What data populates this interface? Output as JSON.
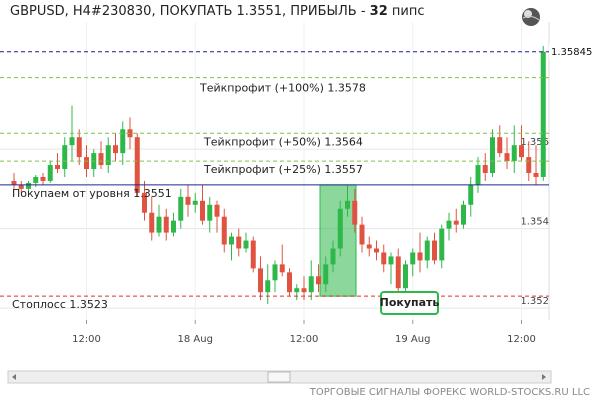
{
  "chart_data": {
    "type": "candlestick",
    "title": "GBPUSD, H4#230830, ПОКУПАТЬ 1.3551, ПРИБЫЛЬ -",
    "profit": 32,
    "profit_unit": "пипс",
    "footer": "ТОРГОВЫЕ СИГНАЛЫ ФОРЕКС WORLD-STOCKS.RU LLC",
    "button": "Покупать",
    "categories": [
      null,
      null,
      null,
      null,
      null,
      null,
      null,
      null,
      null,
      null,
      "12:00",
      null,
      null,
      null,
      null,
      null,
      null,
      null,
      null,
      null,
      null,
      null,
      null,
      null,
      null,
      "18 Aug",
      null,
      null,
      null,
      null,
      null,
      null,
      null,
      null,
      null,
      null,
      null,
      null,
      null,
      null,
      "12:00",
      null,
      null,
      null,
      null,
      null,
      null,
      null,
      null,
      null,
      null,
      null,
      null,
      null,
      null,
      "19 Aug",
      null,
      null,
      null,
      null,
      null,
      null,
      null,
      null,
      null,
      null,
      null,
      null,
      null,
      null,
      "12:00",
      null,
      null,
      null
    ],
    "open": [
      1.3552,
      1.3551,
      1.355,
      1.35515,
      1.3553,
      1.3552,
      1.3556,
      1.3555,
      1.3561,
      1.3563,
      1.3558,
      1.3555,
      1.3559,
      1.3556,
      1.3561,
      1.3559,
      1.3565,
      1.3563,
      1.3549,
      1.3544,
      1.3539,
      1.3543,
      1.3539,
      1.3542,
      1.3548,
      1.3546,
      1.3547,
      1.3542,
      1.3546,
      1.3543,
      1.3536,
      1.3538,
      1.3535,
      1.3537,
      1.353,
      1.3524,
      1.3527,
      1.3531,
      1.3529,
      1.3524,
      1.3525,
      1.3524,
      1.3528,
      1.3526,
      1.3531,
      1.3535,
      1.3545,
      1.3547,
      1.3541,
      1.3536,
      1.3535,
      1.3534,
      1.3531,
      1.3533,
      1.3525,
      1.3531,
      1.3534,
      1.3532,
      1.3537,
      1.3532,
      1.354,
      1.3542,
      1.3541,
      1.3546,
      1.3551,
      1.3556,
      1.3554,
      1.3563,
      1.3559,
      1.3557,
      1.3561,
      1.3558,
      1.3554,
      1.3553
    ],
    "high": [
      1.3554,
      1.3552,
      1.3552,
      1.35535,
      1.3554,
      1.3557,
      1.3559,
      1.3563,
      1.3571,
      1.3565,
      1.3561,
      1.356,
      1.3562,
      1.3563,
      1.3564,
      1.3567,
      1.3568,
      1.3564,
      1.3552,
      1.3548,
      1.3546,
      1.3545,
      1.3544,
      1.355,
      1.3551,
      1.3549,
      1.3551,
      1.3548,
      1.3547,
      1.3545,
      1.3539,
      1.354,
      1.3539,
      1.3538,
      1.3533,
      1.3531,
      1.3532,
      1.3536,
      1.353,
      1.3526,
      1.3528,
      1.3532,
      1.3531,
      1.3533,
      1.3537,
      1.3547,
      1.3551,
      1.355,
      1.3543,
      1.3538,
      1.3537,
      1.3536,
      1.3534,
      1.3535,
      1.3532,
      1.3535,
      1.3539,
      1.3538,
      1.3539,
      1.3541,
      1.3544,
      1.3545,
      1.3547,
      1.3553,
      1.3558,
      1.3559,
      1.3565,
      1.3566,
      1.3563,
      1.3566,
      1.3566,
      1.3562,
      1.3561,
      1.3586
    ],
    "low": [
      1.355,
      1.3549,
      1.3549,
      1.35505,
      1.3551,
      1.35515,
      1.3554,
      1.3553,
      1.3557,
      1.3556,
      1.3553,
      1.3553,
      1.3555,
      1.3554,
      1.3557,
      1.3556,
      1.356,
      1.3548,
      1.3542,
      1.3537,
      1.3538,
      1.3537,
      1.3538,
      1.354,
      1.3543,
      1.3544,
      1.3541,
      1.3539,
      1.3539,
      1.3534,
      1.3532,
      1.3533,
      1.3534,
      1.3529,
      1.3522,
      1.3521,
      1.3524,
      1.3528,
      1.3523,
      1.3522,
      1.3522,
      1.3522,
      1.3524,
      1.3524,
      1.3529,
      1.3533,
      1.3543,
      1.3539,
      1.3534,
      1.3533,
      1.3532,
      1.3529,
      1.3526,
      1.3523,
      1.352,
      1.3528,
      1.3529,
      1.353,
      1.3531,
      1.353,
      1.3537,
      1.3539,
      1.354,
      1.3543,
      1.3549,
      1.3552,
      1.3553,
      1.3558,
      1.3555,
      1.3554,
      1.3557,
      1.3552,
      1.3551,
      1.3552
    ],
    "close": [
      1.3551,
      1.355,
      1.35515,
      1.3553,
      1.3552,
      1.3556,
      1.3555,
      1.3561,
      1.3563,
      1.3558,
      1.3555,
      1.3559,
      1.3556,
      1.3561,
      1.3559,
      1.3565,
      1.3563,
      1.3549,
      1.3544,
      1.3539,
      1.3543,
      1.3539,
      1.3542,
      1.3548,
      1.3546,
      1.3547,
      1.3542,
      1.3546,
      1.3543,
      1.3536,
      1.3538,
      1.3535,
      1.3537,
      1.353,
      1.3524,
      1.3527,
      1.3531,
      1.3529,
      1.3524,
      1.3525,
      1.3524,
      1.3528,
      1.3526,
      1.3531,
      1.3535,
      1.3545,
      1.3547,
      1.3541,
      1.3536,
      1.3535,
      1.3534,
      1.3531,
      1.3533,
      1.3525,
      1.3531,
      1.3534,
      1.3532,
      1.3537,
      1.3532,
      1.354,
      1.3542,
      1.3541,
      1.3546,
      1.3551,
      1.3556,
      1.3554,
      1.3563,
      1.3559,
      1.3557,
      1.3561,
      1.3558,
      1.3554,
      1.3553,
      1.35845
    ],
    "up_color": "#2eb84a",
    "down_color": "#e05340",
    "ylim": [
      1.3517,
      1.3592
    ],
    "yticks": [
      1.352,
      1.354,
      1.356
    ],
    "grid": true,
    "last_price": 1.35845,
    "levels": [
      {
        "label": "Тейкпрофит (+100%) 1.3578",
        "value": 1.3578,
        "color": "#7cc44a",
        "dashed": true
      },
      {
        "label": "Тейкпрофит (+50%) 1.3564",
        "value": 1.3564,
        "color": "#7cc44a",
        "dashed": true
      },
      {
        "label": "Тейкпрофит (+25%) 1.3557",
        "value": 1.3557,
        "color": "#7cc44a",
        "dashed": true
      },
      {
        "label": "Покупаем от уровня 1.3551",
        "value": 1.3551,
        "color": "#1a2a8c",
        "dashed": false
      },
      {
        "label": "Стоплосс 1.3523",
        "value": 1.3523,
        "color": "#d9302c",
        "dashed": true
      }
    ]
  }
}
